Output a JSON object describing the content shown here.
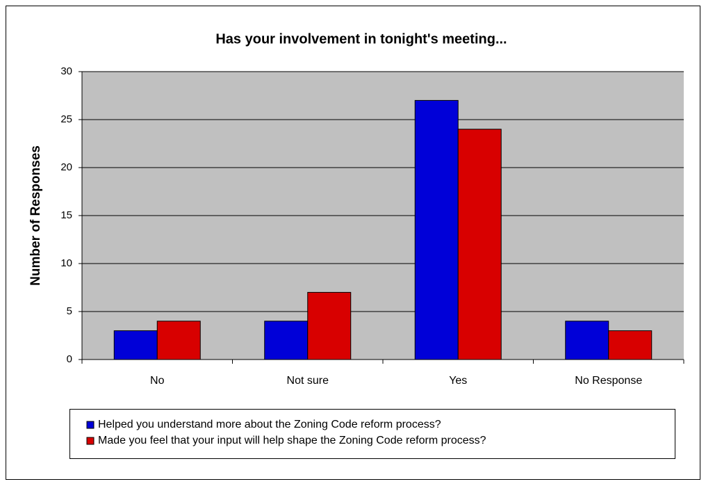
{
  "chart_data": {
    "type": "bar",
    "title": "Has your involvement in tonight's meeting...",
    "y_label": "Number of Responses",
    "categories": [
      "No",
      "Not sure",
      "Yes",
      "No Response"
    ],
    "series": [
      {
        "name": "Helped you understand more about the Zoning Code reform process?",
        "color": "#0000d8",
        "values": [
          3,
          4,
          27,
          4
        ]
      },
      {
        "name": "Made you feel that your input will help shape the Zoning Code reform process?",
        "color": "#d80000",
        "values": [
          4,
          7,
          24,
          3
        ]
      }
    ],
    "ylim": [
      0,
      30
    ],
    "yticks": [
      0,
      5,
      10,
      15,
      20,
      25,
      30
    ],
    "grid": true,
    "legend": "bottom"
  }
}
